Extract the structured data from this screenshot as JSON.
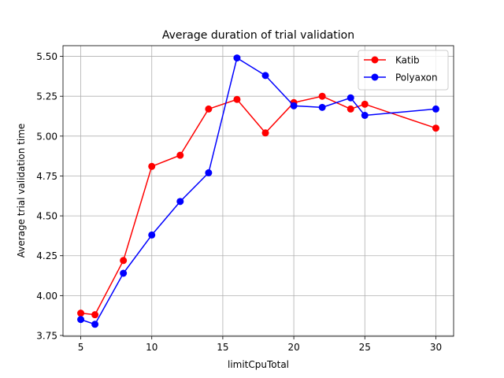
{
  "chart_data": {
    "type": "line",
    "title": "Average duration of trial validation",
    "xlabel": "limitCpuTotal",
    "ylabel": "Average trial validation time",
    "xlim": [
      3.75,
      31.25
    ],
    "ylim": [
      3.745,
      5.567
    ],
    "xticks": [
      5,
      10,
      15,
      20,
      25,
      30
    ],
    "xtick_labels": [
      "5",
      "10",
      "15",
      "20",
      "25",
      "30"
    ],
    "yticks": [
      3.75,
      4.0,
      4.25,
      4.5,
      4.75,
      5.0,
      5.25,
      5.5
    ],
    "ytick_labels": [
      "3.75",
      "4.00",
      "4.25",
      "4.50",
      "4.75",
      "5.00",
      "5.25",
      "5.50"
    ],
    "grid": true,
    "legend_position": "top-right",
    "series": [
      {
        "name": "Katib",
        "color": "#ff0000",
        "marker": "circle",
        "x": [
          5,
          6,
          8,
          10,
          12,
          14,
          16,
          18,
          20,
          22,
          24,
          25,
          30
        ],
        "y": [
          3.89,
          3.88,
          4.22,
          4.81,
          4.88,
          5.17,
          5.23,
          5.02,
          5.21,
          5.25,
          5.17,
          5.2,
          5.05
        ]
      },
      {
        "name": "Polyaxon",
        "color": "#0000ff",
        "marker": "circle",
        "x": [
          5,
          6,
          8,
          10,
          12,
          14,
          16,
          18,
          20,
          22,
          24,
          25,
          30
        ],
        "y": [
          3.85,
          3.82,
          4.14,
          4.38,
          4.59,
          4.77,
          5.49,
          5.38,
          5.19,
          5.18,
          5.24,
          5.13,
          5.17
        ]
      }
    ]
  }
}
